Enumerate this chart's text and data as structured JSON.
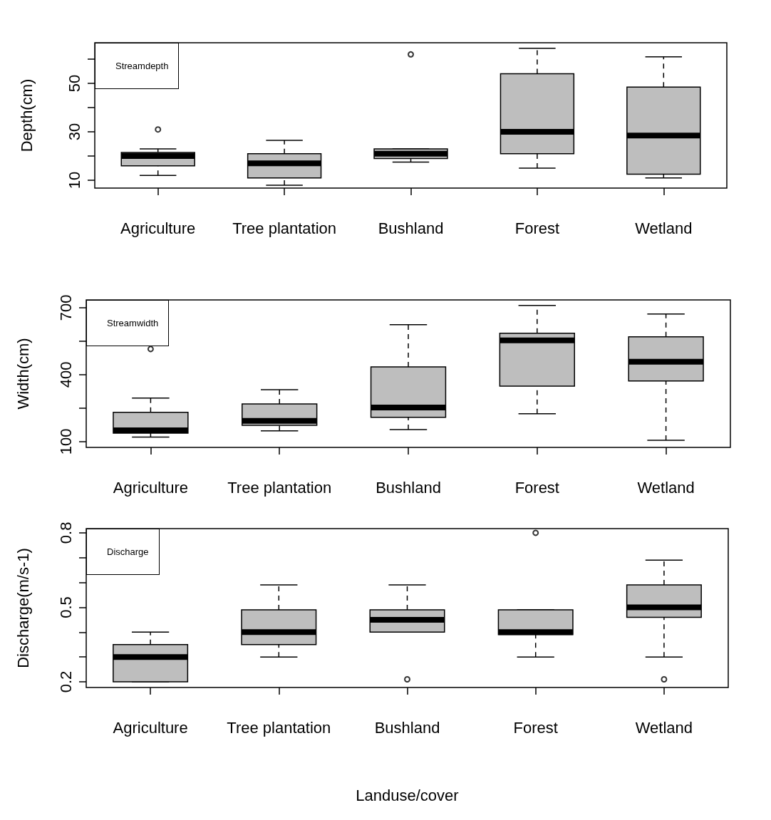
{
  "chart_data": [
    {
      "type": "box",
      "title": "Streamdepth",
      "ylabel": "Depth(cm)",
      "categories": [
        "Agriculture",
        "Tree plantation",
        "Bushland",
        "Forest",
        "Wetland"
      ],
      "color": "#bebebe",
      "ylim": [
        6.8,
        66.8
      ],
      "yticks": [
        10,
        {
          "value": 20,
          "label": null
        },
        30,
        {
          "value": 40,
          "label": null
        },
        50,
        {
          "value": 60,
          "label": null
        }
      ],
      "boxes": [
        {
          "low": 12,
          "q1": 16,
          "median": 20,
          "q3": 21.5,
          "high": 23,
          "outliers": [
            31
          ]
        },
        {
          "low": 8,
          "q1": 11,
          "median": 17,
          "q3": 21,
          "high": 26.5
        },
        {
          "low": 17.5,
          "q1": 19,
          "median": 21,
          "q3": 23,
          "high": 23,
          "outliers": [
            62
          ]
        },
        {
          "low": 15,
          "q1": 21,
          "median": 30,
          "q3": 54,
          "high": 64.5
        },
        {
          "low": 11,
          "q1": 12.5,
          "median": 28.5,
          "q3": 48.5,
          "high": 61
        }
      ]
    },
    {
      "type": "box",
      "title": "Streamwidth",
      "ylabel": "Width(cm)",
      "categories": [
        "Agriculture",
        "Tree plantation",
        "Bushland",
        "Forest",
        "Wetland"
      ],
      "color": "#bebebe",
      "ylim": [
        74,
        735
      ],
      "yticks": [
        100,
        {
          "value": 250,
          "label": null
        },
        400,
        {
          "value": 550,
          "label": null
        },
        700
      ],
      "boxes": [
        {
          "low": 120,
          "q1": 138,
          "median": 151,
          "q3": 231,
          "high": 295,
          "outliers": [
            515
          ]
        },
        {
          "low": 148,
          "q1": 173,
          "median": 193,
          "q3": 269,
          "high": 333
        },
        {
          "low": 154,
          "q1": 209,
          "median": 253,
          "q3": 435,
          "high": 624
        },
        {
          "low": 225,
          "q1": 349,
          "median": 554,
          "q3": 586,
          "high": 710
        },
        {
          "low": 106,
          "q1": 372,
          "median": 458,
          "q3": 570,
          "high": 672
        }
      ]
    },
    {
      "type": "box",
      "title": "Discharge",
      "ylabel": "Discharge(m/s-1)",
      "xlabel": "Landuse/cover",
      "categories": [
        "Agriculture",
        "Tree plantation",
        "Bushland",
        "Forest",
        "Wetland"
      ],
      "color": "#bebebe",
      "ylim": [
        0.177,
        0.817
      ],
      "yticks": [
        0.2,
        {
          "value": 0.3,
          "label": null
        },
        {
          "value": 0.4,
          "label": null
        },
        0.5,
        {
          "value": 0.6,
          "label": null
        },
        {
          "value": 0.7,
          "label": null
        },
        0.8
      ],
      "boxes": [
        {
          "low": 0.2,
          "q1": 0.2,
          "median": 0.3,
          "q3": 0.35,
          "high": 0.4
        },
        {
          "low": 0.3,
          "q1": 0.35,
          "median": 0.4,
          "q3": 0.49,
          "high": 0.59
        },
        {
          "low": 0.4,
          "q1": 0.4,
          "median": 0.45,
          "q3": 0.49,
          "high": 0.59,
          "outliers": [
            0.21
          ]
        },
        {
          "low": 0.3,
          "q1": 0.39,
          "median": 0.4,
          "q3": 0.49,
          "high": 0.49,
          "outliers": [
            0.8
          ]
        },
        {
          "low": 0.3,
          "q1": 0.46,
          "median": 0.5,
          "q3": 0.59,
          "high": 0.69,
          "outliers": [
            0.21
          ]
        }
      ]
    }
  ]
}
